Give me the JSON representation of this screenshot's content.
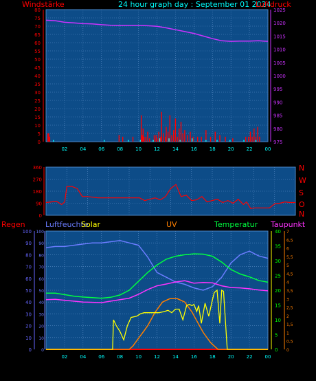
{
  "header": {
    "left_label": "Windstärke",
    "title": "24 hour graph day : September 01 2024",
    "right_label": "Luftdruck"
  },
  "middle_header": {
    "compass_labels": [
      "N",
      "W",
      "S",
      "O",
      "N"
    ]
  },
  "bottom_header": {
    "labels": [
      "Regen",
      "Luftfeuchte",
      "Solar",
      "UV",
      "Temperatur",
      "Taupunkt"
    ]
  },
  "colors": {
    "background": "#000000",
    "plot_bg": "#0d4c88",
    "grid": "#5c8ec8",
    "red": "#ff0000",
    "cyan": "#00ffff",
    "pressure": "#cc33ff",
    "humidity": "#6a7cff",
    "solar": "#ffff00",
    "uv": "#ff7f00",
    "temperature": "#00ff40",
    "dewpoint": "#ff33ff",
    "green_text": "#00ff00",
    "rain_blue": "#6666ff"
  },
  "chart_data": [
    {
      "type": "line",
      "title": "24 hour graph day : September 01 2024",
      "ylabel": "Windstärke",
      "y2label": "Luftdruck",
      "xticks": [
        "02",
        "04",
        "06",
        "08",
        "10",
        "12",
        "14",
        "16",
        "18",
        "20",
        "22",
        "00"
      ],
      "ylim": [
        0,
        80
      ],
      "yticks": [
        0,
        5,
        10,
        15,
        20,
        25,
        30,
        35,
        40,
        45,
        50,
        55,
        60,
        65,
        70,
        75,
        80
      ],
      "y2lim": [
        975,
        1025
      ],
      "y2ticks": [
        975,
        980,
        985,
        990,
        995,
        1000,
        1005,
        1010,
        1015,
        1020,
        1025
      ],
      "grid": true,
      "series": [
        {
          "axis": "left",
          "style": "bars",
          "x": [
            0.2,
            0.3,
            0.4,
            7.9,
            8.3,
            9.4,
            10.3,
            10.4,
            10.5,
            10.6,
            10.8,
            11.0,
            11.2,
            11.7,
            11.9,
            12.0,
            12.2,
            12.4,
            12.5,
            12.7,
            12.9,
            13.0,
            13.2,
            13.4,
            13.6,
            13.8,
            14.0,
            14.2,
            14.4,
            14.6,
            14.8,
            15.0,
            15.3,
            15.6,
            15.9,
            16.4,
            16.8,
            17.3,
            17.8,
            18.3,
            18.8,
            19.4,
            20.2,
            21.6,
            21.9,
            22.1,
            22.3,
            22.5,
            22.7,
            22.9,
            23.1
          ],
          "values": [
            5,
            5,
            3,
            4,
            3,
            3,
            16,
            4,
            8,
            3,
            3,
            6,
            2,
            4,
            4,
            2,
            6,
            3,
            18,
            5,
            3,
            9,
            6,
            16,
            4,
            7,
            14,
            3,
            8,
            12,
            5,
            7,
            4,
            6,
            3,
            3,
            3,
            7,
            3,
            6,
            4,
            3,
            2,
            3,
            3,
            6,
            3,
            8,
            3,
            9,
            3
          ]
        },
        {
          "axis": "left",
          "style": "bars",
          "x": [
            0.8,
            6.3,
            8.9,
            10.2,
            11.6,
            12.3,
            13.3,
            14.5,
            15.8,
            17.3,
            18.5,
            19.9,
            21.4,
            22.7
          ],
          "values": [
            1,
            1,
            1,
            1,
            1,
            2,
            2,
            1,
            2,
            1,
            1,
            1,
            1,
            1
          ]
        },
        {
          "axis": "right",
          "style": "line",
          "x": [
            0,
            1,
            2,
            3,
            4,
            5,
            6,
            7,
            8,
            9,
            10,
            11,
            12,
            13,
            14,
            15,
            16,
            17,
            18,
            19,
            20,
            21,
            22,
            23,
            24
          ],
          "values": [
            1021.0,
            1020.8,
            1020.2,
            1020.0,
            1019.7,
            1019.6,
            1019.3,
            1019.1,
            1019.0,
            1019.0,
            1019.0,
            1018.9,
            1018.7,
            1018.1,
            1017.4,
            1016.7,
            1016.0,
            1015.0,
            1014.0,
            1013.2,
            1013.0,
            1013.1,
            1013.1,
            1013.2,
            1013.0
          ]
        }
      ]
    },
    {
      "type": "line",
      "yticks": [
        0,
        90,
        180,
        270,
        360
      ],
      "ylim": [
        0,
        360
      ],
      "y2labels": [
        "N",
        "W",
        "S",
        "O",
        "N"
      ],
      "xticks": [],
      "grid": true,
      "series": [
        {
          "x": [
            0,
            0.5,
            1.0,
            1.5,
            1.8,
            2.0,
            2.5,
            3.0,
            3.5,
            4.0,
            5.0,
            6.0,
            7.0,
            8.0,
            9.0,
            9.5,
            10.0,
            10.5,
            11.0,
            11.5,
            12.0,
            12.5,
            13.0,
            13.5,
            14.0,
            14.5,
            15.0,
            15.5,
            16.0,
            16.5,
            17.0,
            17.5,
            18.0,
            18.5,
            19.0,
            19.3,
            19.7,
            20.0,
            20.5,
            21.0,
            21.5,
            22.0,
            22.5,
            23.0,
            23.5,
            24.0
          ],
          "values": [
            95,
            100,
            105,
            80,
            100,
            215,
            215,
            200,
            140,
            140,
            130,
            130,
            130,
            130,
            130,
            110,
            120,
            130,
            115,
            140,
            200,
            230,
            140,
            150,
            110,
            115,
            140,
            100,
            110,
            120,
            95,
            110,
            90,
            120,
            80,
            100,
            50,
            55,
            55,
            55,
            55,
            85,
            90,
            100,
            95,
            95
          ]
        }
      ]
    },
    {
      "type": "line",
      "xticks": [
        "02",
        "04",
        "06",
        "08",
        "10",
        "12",
        "14",
        "16",
        "18",
        "20",
        "22",
        "00"
      ],
      "ylim": [
        0,
        100
      ],
      "yticks": [
        0,
        10,
        20,
        30,
        40,
        50,
        60,
        70,
        80,
        90,
        100
      ],
      "y2ticks_temp": [
        0,
        5,
        10,
        15,
        20,
        25,
        30,
        35,
        40
      ],
      "y2ticks_uv": [
        "0",
        "0,5",
        "1",
        "1,5",
        "2",
        "2,5",
        "3",
        "3,5",
        "4",
        "4,5",
        "5",
        "5,5",
        "6",
        "6,5",
        "7"
      ],
      "grid": true,
      "series": [
        {
          "name": "Luftfeuchte",
          "x": [
            0,
            1,
            2,
            3,
            4,
            5,
            6,
            7,
            8,
            9,
            10,
            11,
            12,
            13,
            14,
            15,
            16,
            17,
            18,
            19,
            20,
            21,
            22,
            23,
            24
          ],
          "values": [
            86,
            87,
            87,
            88,
            89,
            90,
            90,
            91,
            92,
            90,
            88,
            78,
            65,
            61,
            57,
            55,
            52,
            50,
            53,
            61,
            73,
            80,
            83,
            79,
            77
          ]
        },
        {
          "name": "Solar",
          "x": [
            0,
            7.2,
            7.3,
            7.6,
            8.0,
            8.4,
            8.8,
            9.2,
            9.8,
            10.2,
            10.6,
            11.0,
            11.6,
            12.2,
            12.8,
            13.2,
            13.6,
            14.0,
            14.4,
            14.8,
            15.2,
            15.5,
            15.8,
            16.0,
            16.3,
            16.5,
            16.8,
            17.2,
            17.6,
            18.0,
            18.2,
            18.5,
            18.8,
            19.0,
            19.2,
            19.6,
            24
          ],
          "values": [
            0,
            0,
            25,
            20,
            15,
            8,
            20,
            27,
            28,
            30,
            31,
            31,
            31,
            31,
            32,
            33,
            31,
            34,
            34,
            25,
            37,
            38,
            37,
            38,
            32,
            37,
            22,
            39,
            28,
            42,
            48,
            50,
            22,
            50,
            49,
            0,
            0
          ]
        },
        {
          "name": "UV",
          "x": [
            0,
            9.0,
            9.4,
            9.8,
            10.2,
            10.6,
            11.0,
            11.4,
            11.8,
            12.2,
            12.6,
            13.0,
            13.4,
            13.8,
            14.2,
            14.6,
            15.0,
            15.4,
            15.8,
            16.2,
            16.6,
            17.0,
            17.4,
            17.8,
            18.2,
            18.6,
            24
          ],
          "values": [
            0,
            0,
            0.2,
            0.5,
            0.8,
            1.1,
            1.4,
            1.8,
            2.2,
            2.5,
            2.8,
            2.9,
            3.0,
            3.0,
            3.0,
            2.9,
            2.8,
            2.5,
            2.2,
            1.8,
            1.4,
            1.0,
            0.7,
            0.4,
            0.2,
            0,
            0
          ]
        },
        {
          "name": "Temperatur",
          "x": [
            0,
            1,
            2,
            3,
            4,
            5,
            6,
            7,
            8,
            9,
            10,
            11,
            12,
            13,
            14,
            15,
            16,
            17,
            18,
            19,
            20,
            21,
            22,
            23,
            24
          ],
          "values": [
            19,
            19,
            18.5,
            18,
            17.7,
            17.5,
            17.3,
            17.6,
            18.4,
            20,
            23,
            26,
            28.5,
            30.5,
            31.5,
            32,
            32.3,
            32.2,
            31.5,
            29.5,
            27,
            25.5,
            24.5,
            23.3,
            22.7
          ]
        },
        {
          "name": "Taupunkt",
          "x": [
            0,
            1,
            2,
            3,
            4,
            5,
            6,
            7,
            8,
            9,
            10,
            11,
            12,
            13,
            14,
            15,
            16,
            17,
            18,
            19,
            20,
            21,
            22,
            23,
            24
          ],
          "values": [
            16.8,
            16.9,
            16.6,
            16.3,
            16,
            15.9,
            15.8,
            16.3,
            16.8,
            17.3,
            18.6,
            20.2,
            21.5,
            22.1,
            22.8,
            23.2,
            22.4,
            22.6,
            22.5,
            21.5,
            20.9,
            20.8,
            20.5,
            20.1,
            19.8
          ]
        },
        {
          "name": "Regen",
          "x": [
            0,
            24
          ],
          "values": [
            0,
            0
          ]
        }
      ]
    }
  ]
}
